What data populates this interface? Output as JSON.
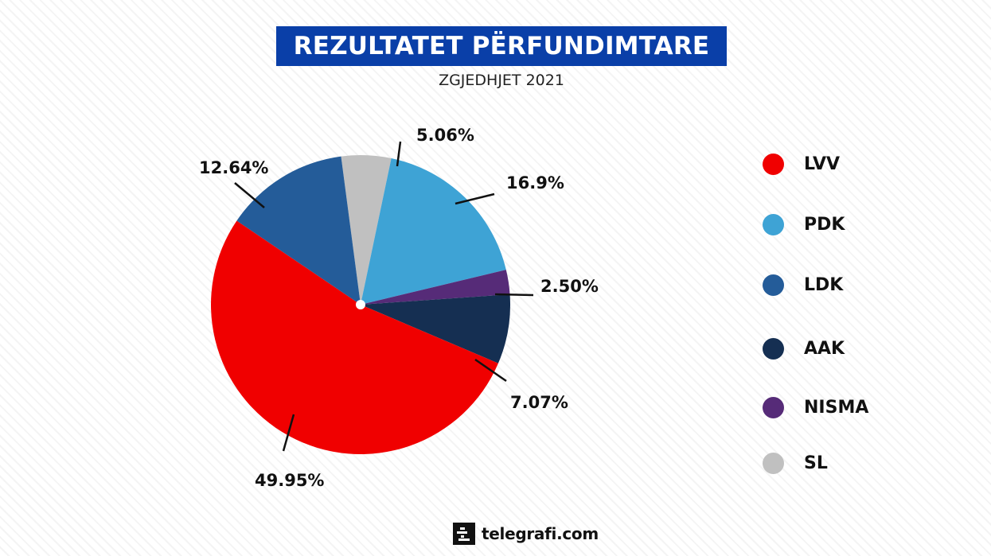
{
  "header": {
    "title": "REZULTATET PËRFUNDIMTARE",
    "subtitle": "ZGJEDHJET 2021"
  },
  "chart_data": {
    "type": "pie",
    "title": "REZULTATET PËRFUNDIMTARE",
    "subtitle": "ZGJEDHJET 2021",
    "categories": [
      "LVV",
      "PDK",
      "LDK",
      "AAK",
      "NISMA",
      "SL"
    ],
    "values": [
      49.95,
      16.9,
      12.64,
      7.07,
      2.5,
      5.06
    ],
    "labels": [
      "49.95%",
      "16.9%",
      "12.64%",
      "7.07%",
      "2.50%",
      "5.06%"
    ],
    "colors": {
      "LVV": "#f00000",
      "PDK": "#3ea3d5",
      "LDK": "#245c99",
      "AAK": "#152f52",
      "NISMA": "#562b78",
      "SL": "#c0c0c0"
    },
    "legend_position": "right"
  },
  "legend": {
    "items": [
      {
        "label": "LVV",
        "color": "#f00000"
      },
      {
        "label": "PDK",
        "color": "#3ea3d5"
      },
      {
        "label": "LDK",
        "color": "#245c99"
      },
      {
        "label": "AAK",
        "color": "#152f52"
      },
      {
        "label": "NISMA",
        "color": "#562b78"
      },
      {
        "label": "SL",
        "color": "#c0c0c0"
      }
    ]
  },
  "labels": {
    "lvv": "49.95%",
    "pdk": "16.9%",
    "ldk": "12.64%",
    "aak": "7.07%",
    "nisma": "2.50%",
    "sl": "5.06%"
  },
  "footer": {
    "brand": "telegrafi.com"
  }
}
